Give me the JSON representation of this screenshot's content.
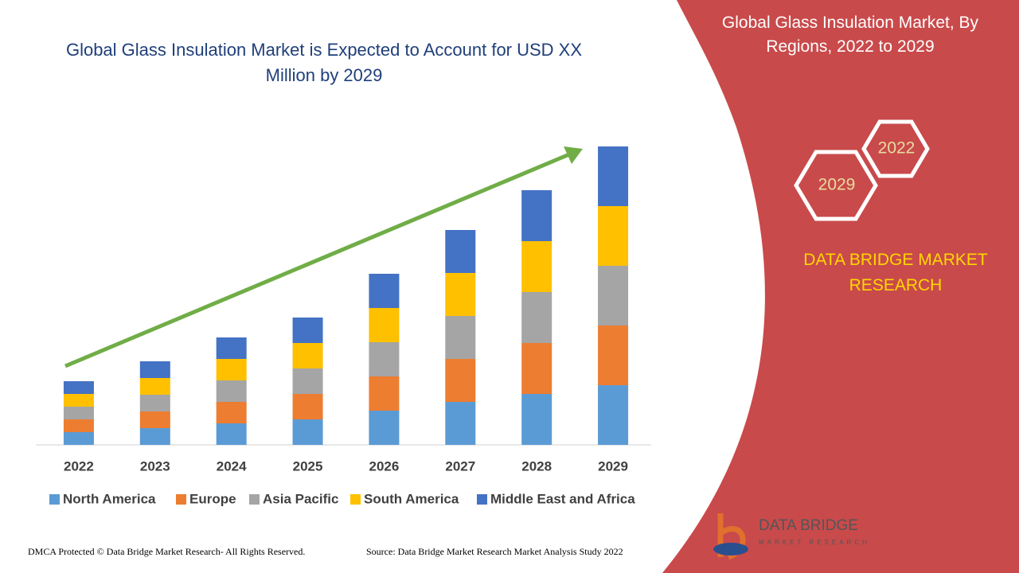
{
  "chart_data": {
    "type": "stacked_bar",
    "title": "Global Glass Insulation Market is Expected to Account for USD XX Million by 2029",
    "categories": [
      "2022",
      "2023",
      "2024",
      "2025",
      "2026",
      "2027",
      "2028",
      "2029"
    ],
    "series": [
      {
        "name": "North America",
        "color": "#5b9bd5",
        "values": [
          16,
          21,
          27,
          32,
          43,
          54,
          64,
          75
        ]
      },
      {
        "name": "Europe",
        "color": "#ed7d31",
        "values": [
          16,
          21,
          27,
          32,
          43,
          54,
          64,
          75
        ]
      },
      {
        "name": "Asia Pacific",
        "color": "#a5a5a5",
        "values": [
          16,
          21,
          27,
          32,
          43,
          54,
          64,
          75
        ]
      },
      {
        "name": "South America",
        "color": "#ffc000",
        "values": [
          16,
          21,
          27,
          32,
          43,
          54,
          64,
          75
        ]
      },
      {
        "name": "Middle East and Africa",
        "color": "#4472c4",
        "values": [
          16,
          21,
          27,
          32,
          43,
          54,
          64,
          75
        ]
      }
    ],
    "legend": "bottom"
  },
  "panel": {
    "title": "Global Glass Insulation Market, By Regions, 2022 to 2029",
    "hex_start": "2022",
    "hex_end": "2029",
    "brand": "DATA BRIDGE MARKET RESEARCH"
  },
  "logo": {
    "name": "DATA BRIDGE",
    "tagline": "MARKET RESEARCH"
  },
  "footer": {
    "rights": "DMCA Protected © Data Bridge Market Research- All Rights Reserved.",
    "source": "Source: Data Bridge Market Research Market Analysis Study 2022"
  }
}
